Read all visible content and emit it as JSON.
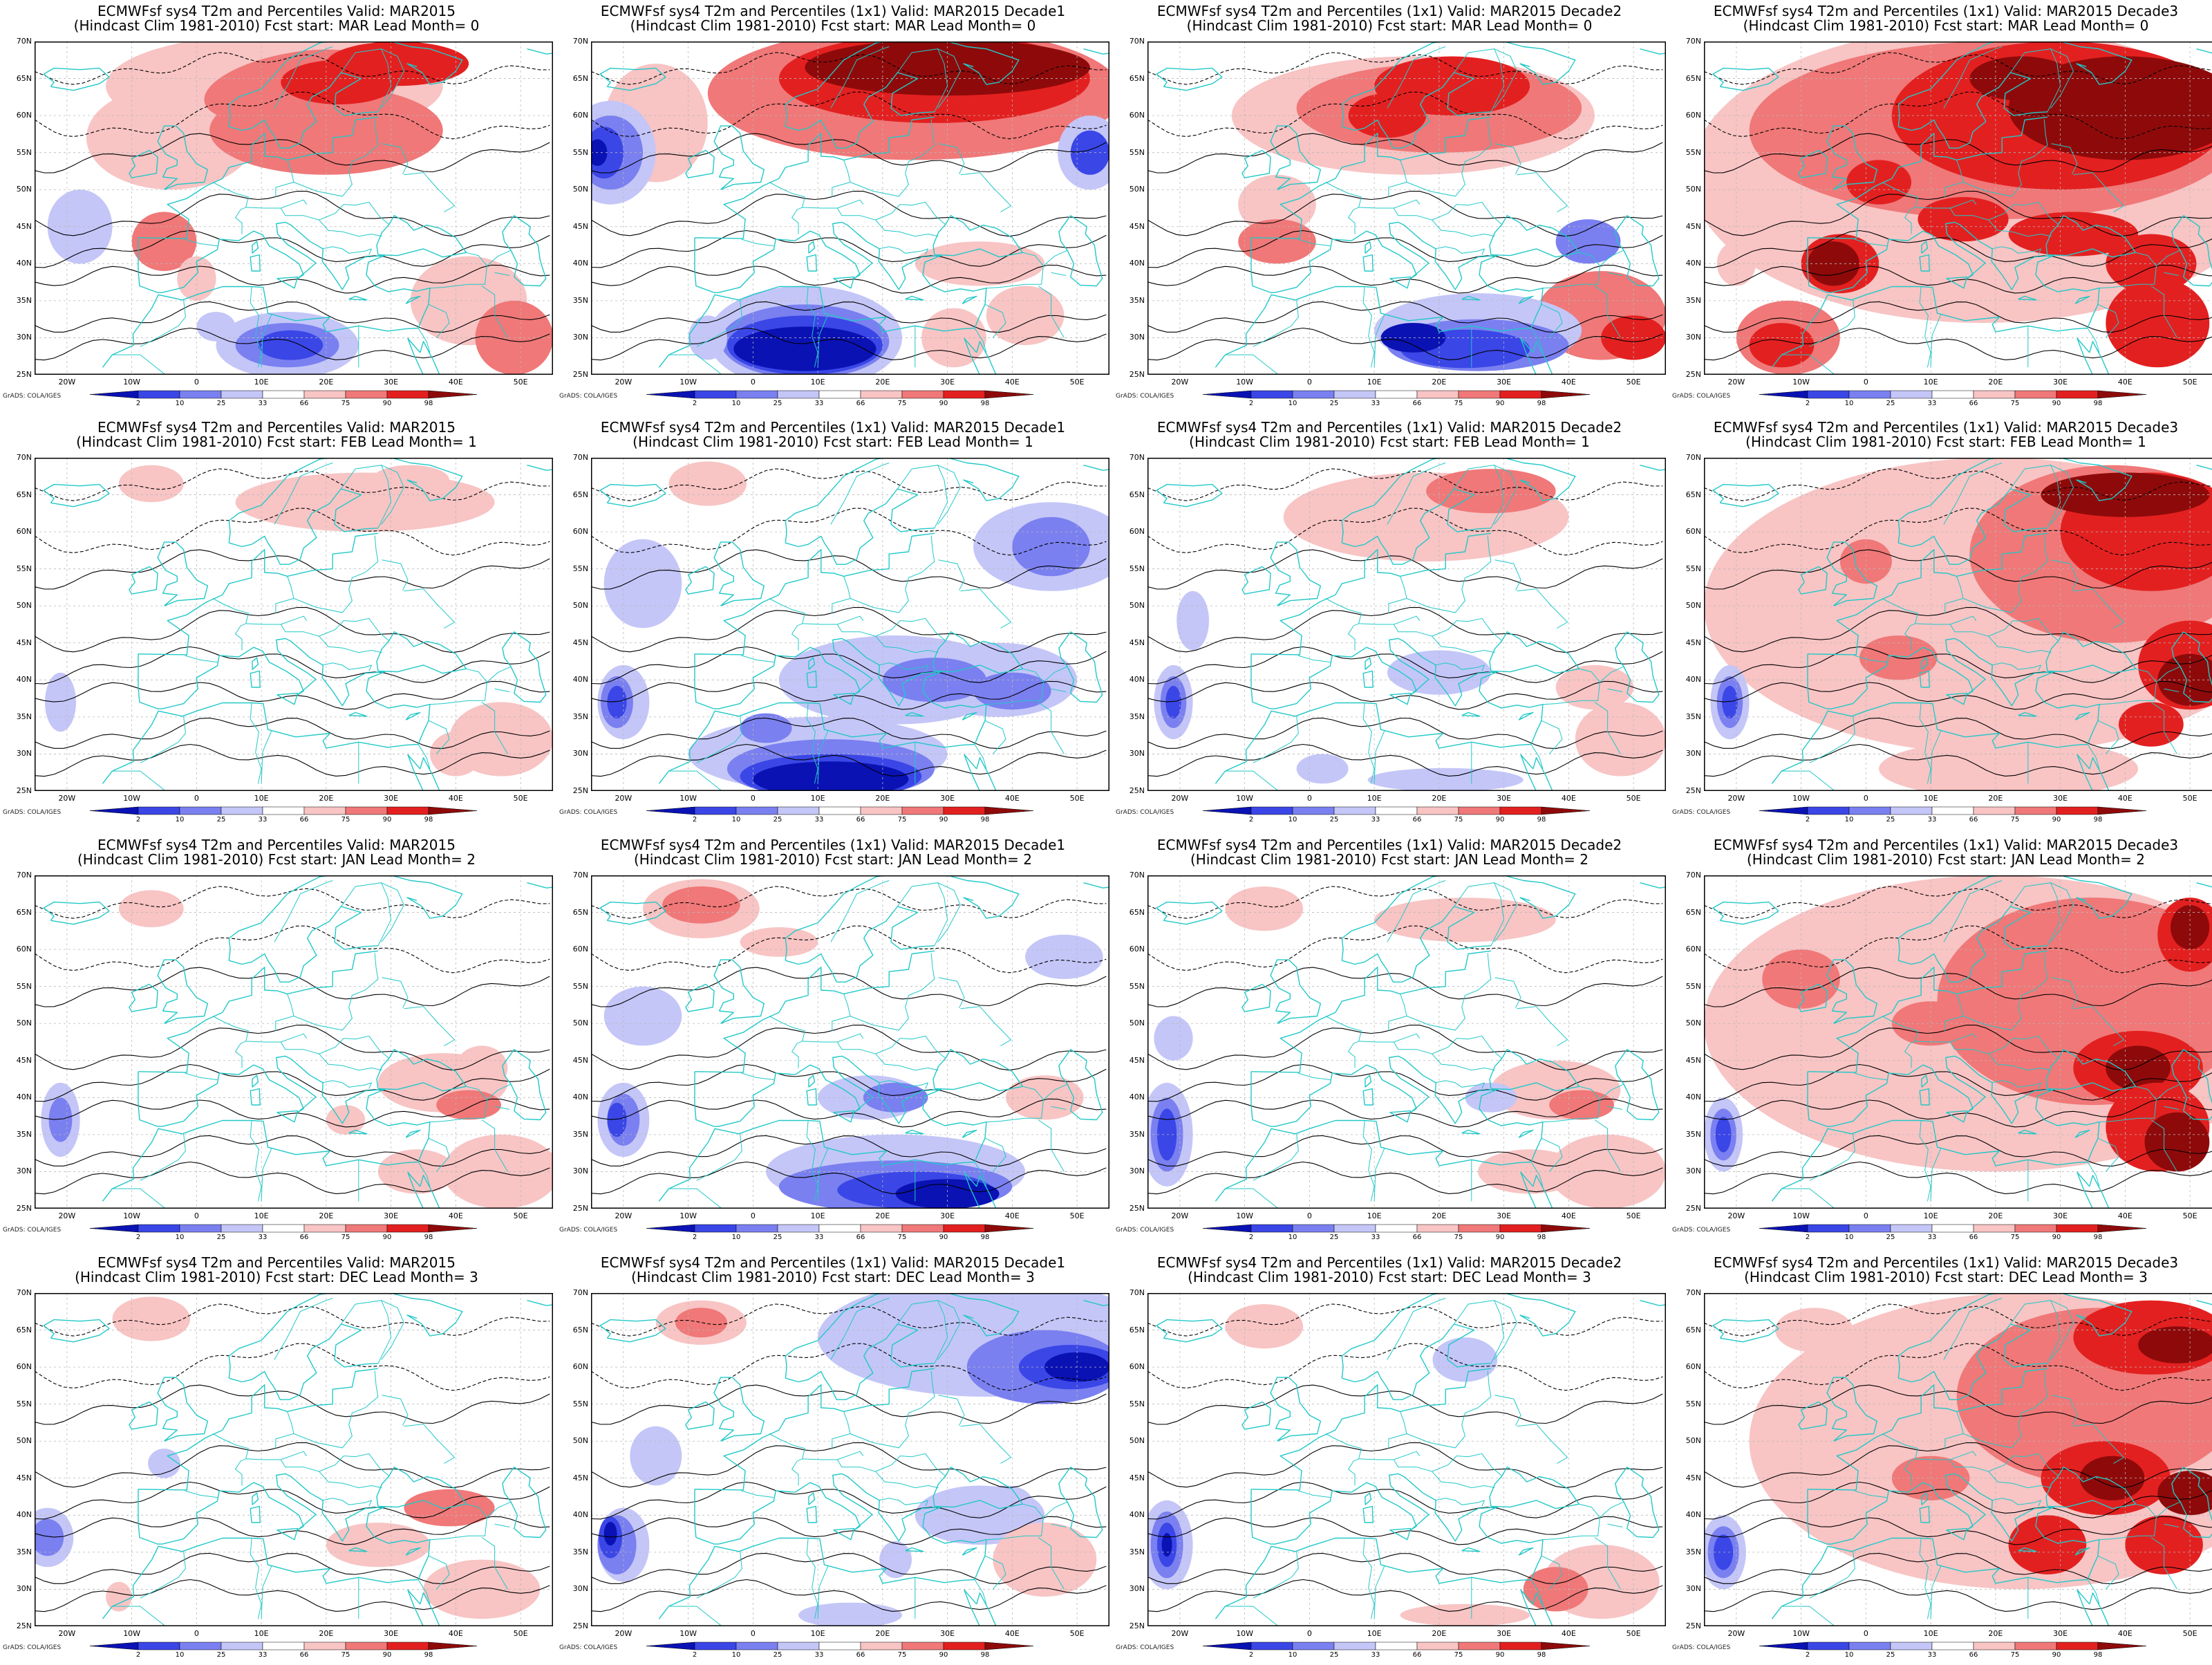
{
  "credit": "GrADS: COLA/IGES",
  "lat_labels": [
    "70N",
    "65N",
    "60N",
    "55N",
    "50N",
    "45N",
    "40N",
    "35N",
    "30N",
    "25N"
  ],
  "lon_labels": [
    "20W",
    "10W",
    "0",
    "10E",
    "20E",
    "30E",
    "40E",
    "50E"
  ],
  "colorbar_ticks": [
    "2",
    "10",
    "25",
    "33",
    "66",
    "75",
    "90",
    "98"
  ],
  "colors": {
    "deep_blue": "#0a12b4",
    "blue": "#3a46e6",
    "mid_blue": "#7a80f0",
    "light_blue": "#c4c6f8",
    "light_red": "#f8c4c4",
    "mid_red": "#f07878",
    "red": "#e32020",
    "dark_red": "#8e0a0a",
    "coast": "#22c8c8",
    "contour": "#000000"
  },
  "panels": [
    {
      "title1": "ECMWFsf sys4  T2m and Percentiles Valid: MAR2015",
      "title2": "(Hindcast Clim 1981-2010) Fcst start: MAR  Lead Month= 0"
    },
    {
      "title1": "ECMWFsf sys4  T2m and Percentiles (1x1) Valid: MAR2015 Decade1",
      "title2": "(Hindcast Clim 1981-2010) Fcst start: MAR  Lead Month= 0"
    },
    {
      "title1": "ECMWFsf sys4  T2m and Percentiles (1x1) Valid: MAR2015 Decade2",
      "title2": "(Hindcast Clim 1981-2010) Fcst start: MAR  Lead Month= 0"
    },
    {
      "title1": "ECMWFsf sys4  T2m and Percentiles (1x1) Valid: MAR2015 Decade3",
      "title2": "(Hindcast Clim 1981-2010) Fcst start: MAR  Lead Month= 0"
    },
    {
      "title1": "ECMWFsf sys4  T2m and Percentiles Valid: MAR2015",
      "title2": "(Hindcast Clim 1981-2010) Fcst start: FEB  Lead Month= 1"
    },
    {
      "title1": "ECMWFsf sys4  T2m and Percentiles (1x1) Valid: MAR2015 Decade1",
      "title2": "(Hindcast Clim 1981-2010) Fcst start: FEB  Lead Month= 1"
    },
    {
      "title1": "ECMWFsf sys4  T2m and Percentiles (1x1) Valid: MAR2015 Decade2",
      "title2": "(Hindcast Clim 1981-2010) Fcst start: FEB  Lead Month= 1"
    },
    {
      "title1": "ECMWFsf sys4  T2m and Percentiles (1x1) Valid: MAR2015 Decade3",
      "title2": "(Hindcast Clim 1981-2010) Fcst start: FEB  Lead Month= 1"
    },
    {
      "title1": "ECMWFsf sys4  T2m and Percentiles Valid: MAR2015",
      "title2": "(Hindcast Clim 1981-2010) Fcst start: JAN  Lead Month= 2"
    },
    {
      "title1": "ECMWFsf sys4  T2m and Percentiles (1x1) Valid: MAR2015 Decade1",
      "title2": "(Hindcast Clim 1981-2010) Fcst start: JAN  Lead Month= 2"
    },
    {
      "title1": "ECMWFsf sys4  T2m and Percentiles (1x1) Valid: MAR2015 Decade2",
      "title2": "(Hindcast Clim 1981-2010) Fcst start: JAN  Lead Month= 2"
    },
    {
      "title1": "ECMWFsf sys4  T2m and Percentiles (1x1) Valid: MAR2015 Decade3",
      "title2": "(Hindcast Clim 1981-2010) Fcst start: JAN  Lead Month= 2"
    },
    {
      "title1": "ECMWFsf sys4  T2m and Percentiles Valid: MAR2015",
      "title2": "(Hindcast Clim 1981-2010) Fcst start: DEC  Lead Month= 3"
    },
    {
      "title1": "ECMWFsf sys4  T2m and Percentiles (1x1) Valid: MAR2015 Decade1",
      "title2": "(Hindcast Clim 1981-2010) Fcst start: DEC  Lead Month= 3"
    },
    {
      "title1": "ECMWFsf sys4  T2m and Percentiles (1x1) Valid: MAR2015 Decade2",
      "title2": "(Hindcast Clim 1981-2010) Fcst start: DEC  Lead Month= 3"
    },
    {
      "title1": "ECMWFsf sys4  T2m and Percentiles (1x1) Valid: MAR2015 Decade3",
      "title2": "(Hindcast Clim 1981-2010) Fcst start: DEC  Lead Month= 3"
    }
  ]
}
